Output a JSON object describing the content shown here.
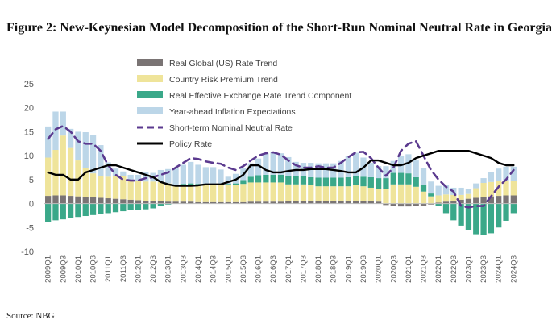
{
  "title": "Figure 2: New-Keynesian Model Decomposition of the Short-Run Nominal Neutral Rate in Georgia",
  "source": "Source: NBG",
  "chart_data": {
    "type": "bar",
    "stacked": true,
    "grid": false,
    "legend_position": "top-left",
    "ylim": [
      -10,
      25
    ],
    "yticks": [
      -10,
      -5,
      0,
      5,
      10,
      15,
      20,
      25
    ],
    "x": [
      "2009Q1",
      "2009Q2",
      "2009Q3",
      "2009Q4",
      "2010Q1",
      "2010Q2",
      "2010Q3",
      "2010Q4",
      "2011Q1",
      "2011Q2",
      "2011Q3",
      "2011Q4",
      "2012Q1",
      "2012Q2",
      "2012Q3",
      "2012Q4",
      "2013Q1",
      "2013Q2",
      "2013Q3",
      "2013Q4",
      "2014Q1",
      "2014Q2",
      "2014Q3",
      "2014Q4",
      "2015Q1",
      "2015Q2",
      "2015Q3",
      "2015Q4",
      "2016Q1",
      "2016Q2",
      "2016Q3",
      "2016Q4",
      "2017Q1",
      "2017Q2",
      "2017Q3",
      "2017Q4",
      "2018Q1",
      "2018Q2",
      "2018Q3",
      "2018Q4",
      "2019Q1",
      "2019Q2",
      "2019Q3",
      "2019Q4",
      "2020Q1",
      "2020Q2",
      "2020Q3",
      "2020Q4",
      "2021Q1",
      "2021Q2",
      "2021Q3",
      "2021Q4",
      "2022Q1",
      "2022Q2",
      "2022Q3",
      "2022Q4",
      "2023Q1",
      "2023Q2",
      "2023Q3",
      "2023Q4",
      "2024Q1",
      "2024Q2",
      "2024Q3"
    ],
    "x_tick_labels": [
      "2009Q1",
      "2009Q3",
      "2010Q1",
      "2010Q3",
      "2011Q1",
      "2011Q3",
      "2012Q1",
      "2012Q3",
      "2013Q1",
      "2013Q3",
      "2014Q1",
      "2014Q3",
      "2015Q1",
      "2015Q3",
      "2016Q1",
      "2016Q3",
      "2017Q1",
      "2017Q3",
      "2018Q1",
      "2018Q3",
      "2019Q1",
      "2019Q3",
      "2020Q1",
      "2020Q3",
      "2021Q1",
      "2021Q3",
      "2022Q1",
      "2022Q3",
      "2023Q1",
      "2023Q3",
      "2024Q1",
      "2024Q3"
    ],
    "series": [
      {
        "name": "Real Global (US) Rate Trend",
        "kind": "bar",
        "color": "#7a7474",
        "values": [
          1.6,
          1.7,
          1.7,
          1.6,
          1.5,
          1.4,
          1.3,
          1.2,
          1.1,
          1.0,
          0.9,
          0.8,
          0.7,
          0.6,
          0.6,
          0.5,
          0.4,
          0.4,
          0.4,
          0.4,
          0.3,
          0.3,
          0.3,
          0.3,
          0.3,
          0.3,
          0.3,
          0.4,
          0.4,
          0.4,
          0.4,
          0.4,
          0.5,
          0.5,
          0.5,
          0.5,
          0.6,
          0.6,
          0.6,
          0.6,
          0.6,
          0.6,
          0.6,
          0.5,
          0.4,
          -0.3,
          -0.5,
          -0.6,
          -0.6,
          -0.5,
          -0.4,
          -0.2,
          0.2,
          0.4,
          0.6,
          0.8,
          1.0,
          1.2,
          1.3,
          1.5,
          1.6,
          1.7,
          1.7
        ]
      },
      {
        "name": "Country Risk Premium  Trend",
        "kind": "bar",
        "color": "#efe49a",
        "values": [
          8.0,
          9.5,
          12.5,
          10.0,
          7.5,
          6.0,
          5.0,
          4.5,
          4.5,
          4.8,
          4.8,
          4.2,
          4.0,
          4.0,
          4.0,
          4.0,
          3.8,
          3.5,
          3.5,
          3.5,
          3.5,
          3.5,
          3.5,
          3.5,
          3.5,
          3.5,
          3.8,
          4.0,
          4.0,
          4.0,
          4.0,
          4.0,
          3.5,
          3.5,
          3.5,
          3.3,
          3.0,
          3.0,
          3.0,
          3.0,
          3.0,
          3.2,
          3.0,
          2.8,
          2.7,
          3.0,
          4.0,
          4.0,
          4.0,
          3.5,
          2.5,
          1.5,
          1.5,
          1.5,
          1.2,
          1.0,
          1.0,
          2.0,
          3.0,
          3.0,
          3.2,
          3.0,
          3.0
        ]
      },
      {
        "name": "Real Effective Exchange Rate Trend Component",
        "kind": "bar",
        "color": "#3aa889",
        "values": [
          -3.8,
          -3.5,
          -3.3,
          -3.0,
          -2.8,
          -2.6,
          -2.4,
          -2.2,
          -2.0,
          -1.8,
          -1.6,
          -1.4,
          -1.3,
          -1.2,
          -1.0,
          -0.5,
          -0.2,
          0.0,
          0.2,
          0.3,
          0.3,
          0.3,
          0.3,
          0.3,
          0.3,
          0.4,
          0.8,
          1.2,
          1.5,
          1.6,
          1.6,
          1.6,
          1.7,
          1.7,
          1.7,
          1.7,
          1.8,
          1.8,
          1.8,
          1.8,
          1.9,
          2.0,
          2.0,
          2.2,
          2.2,
          2.3,
          2.4,
          2.4,
          2.3,
          2.0,
          1.4,
          0.6,
          -0.5,
          -2.0,
          -3.5,
          -4.6,
          -5.6,
          -6.4,
          -6.6,
          -6.2,
          -5.0,
          -3.6,
          -2.0
        ]
      },
      {
        "name": "Year-ahead Inflation Expectations",
        "kind": "bar",
        "color": "#bcd6e8",
        "values": [
          6.5,
          8.0,
          5.0,
          4.0,
          6.0,
          7.5,
          8.0,
          6.5,
          3.0,
          1.5,
          1.0,
          1.0,
          1.3,
          2.0,
          1.8,
          2.5,
          3.0,
          3.5,
          4.0,
          4.5,
          4.0,
          3.5,
          3.5,
          3.0,
          1.5,
          2.0,
          2.5,
          2.8,
          3.5,
          4.5,
          4.8,
          4.5,
          4.0,
          3.0,
          2.8,
          3.0,
          3.0,
          3.0,
          3.0,
          3.5,
          4.5,
          4.8,
          4.0,
          3.0,
          2.5,
          2.5,
          2.5,
          3.5,
          4.0,
          3.5,
          3.5,
          2.5,
          2.0,
          2.0,
          1.5,
          1.5,
          1.0,
          1.0,
          1.0,
          2.0,
          2.5,
          3.0,
          3.0
        ]
      },
      {
        "name": "Short-term Nominal Neutral Rate",
        "kind": "line",
        "style": "dashed",
        "color": "#5b3a8f",
        "values": [
          13.5,
          15.5,
          16.2,
          15.0,
          13.0,
          12.5,
          12.5,
          11.0,
          8.0,
          6.0,
          5.0,
          4.8,
          4.8,
          5.3,
          5.5,
          6.0,
          6.5,
          7.5,
          8.5,
          9.5,
          9.3,
          8.8,
          8.5,
          8.3,
          7.5,
          7.0,
          7.8,
          9.0,
          10.0,
          10.5,
          10.7,
          10.2,
          9.0,
          8.0,
          7.5,
          7.5,
          7.8,
          7.5,
          7.5,
          8.5,
          9.7,
          10.7,
          10.8,
          9.5,
          7.5,
          5.8,
          7.5,
          11.0,
          12.5,
          13.0,
          10.0,
          7.0,
          5.0,
          3.5,
          2.5,
          -0.5,
          -0.8,
          -0.5,
          -0.5,
          1.5,
          3.5,
          5.0,
          7.0
        ]
      },
      {
        "name": "Policy Rate",
        "kind": "line",
        "style": "solid",
        "color": "#000000",
        "values": [
          6.5,
          6.0,
          6.0,
          5.0,
          5.0,
          6.5,
          7.0,
          7.5,
          8.0,
          8.0,
          7.5,
          7.0,
          6.5,
          6.0,
          5.5,
          4.5,
          4.0,
          3.7,
          3.7,
          3.7,
          3.8,
          4.0,
          4.0,
          4.0,
          4.5,
          5.0,
          6.0,
          8.0,
          8.0,
          7.0,
          6.5,
          6.5,
          6.8,
          7.0,
          7.0,
          7.2,
          7.2,
          7.2,
          7.0,
          6.8,
          6.5,
          6.5,
          7.5,
          9.0,
          9.0,
          8.5,
          8.0,
          8.0,
          8.5,
          9.5,
          10.0,
          10.5,
          11.0,
          11.0,
          11.0,
          11.0,
          11.0,
          10.5,
          10.0,
          9.5,
          8.5,
          8.0,
          8.0
        ]
      }
    ]
  }
}
